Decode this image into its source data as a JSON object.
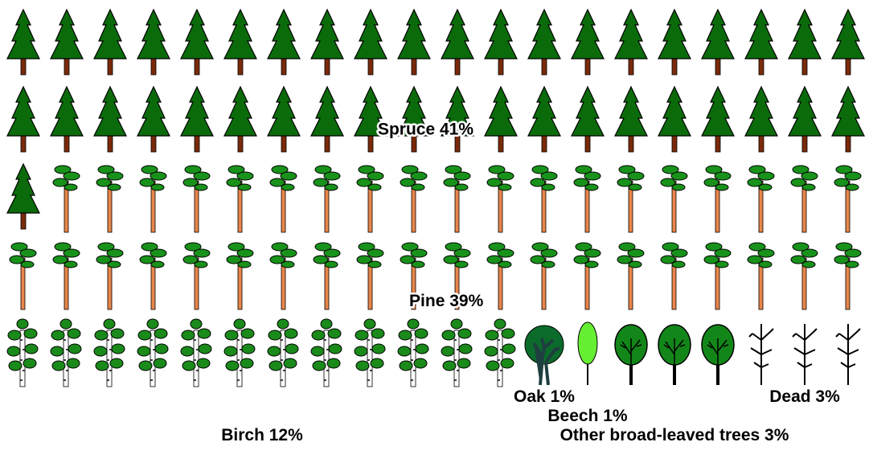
{
  "chart_data": {
    "type": "pictogram",
    "categories": [
      "Spruce",
      "Pine",
      "Birch",
      "Oak",
      "Beech",
      "Other broad-leaved trees",
      "Dead"
    ],
    "values": [
      41,
      39,
      12,
      1,
      1,
      3,
      3
    ],
    "value_labels": [
      "41%",
      "39%",
      "12%",
      "1%",
      "1%",
      "3%",
      "3%"
    ]
  }
}
